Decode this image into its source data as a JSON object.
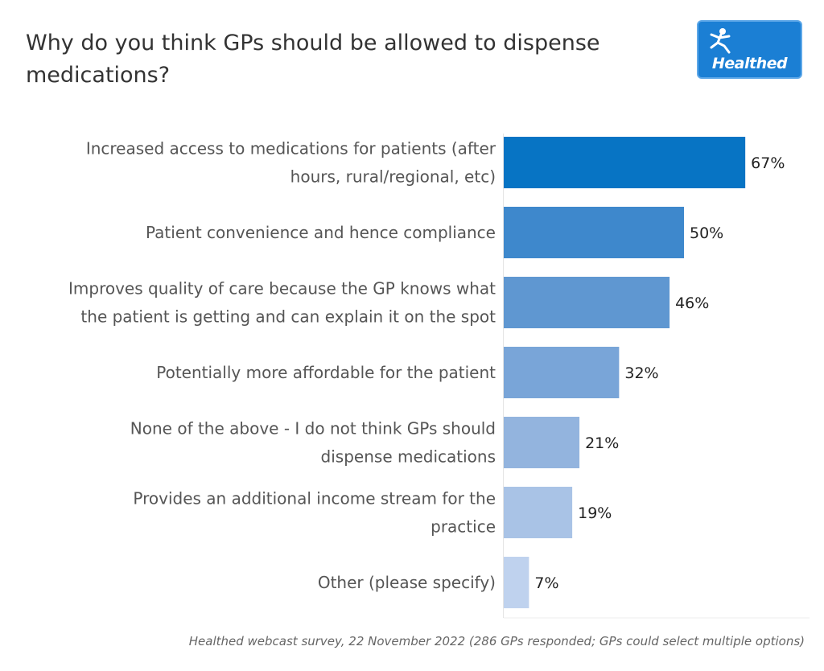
{
  "logo": {
    "text": "Healthed",
    "icon": "hermes-figure-icon",
    "color": "#1b7fd4"
  },
  "footnote": "Healthed webcast survey, 22 November 2022 (286 GPs responded; GPs could select multiple options)",
  "chart_data": {
    "type": "bar",
    "orientation": "horizontal",
    "title": "Why do you think GPs should be allowed to dispense medications?",
    "xlabel": "",
    "ylabel": "",
    "xlim": [
      0,
      100
    ],
    "grid": false,
    "legend": "none",
    "value_suffix": "%",
    "categories": [
      [
        "Increased access to medications for patients (after",
        "hours, rural/regional, etc)"
      ],
      [
        "Patient convenience and hence compliance"
      ],
      [
        "Improves quality of care because the GP knows what",
        "the patient is getting and can explain it on the spot"
      ],
      [
        "Potentially more affordable for the patient"
      ],
      [
        "None of the above - I do not think GPs should",
        "dispense medications"
      ],
      [
        "Provides an additional income stream for the",
        "practice"
      ],
      [
        "Other (please specify)"
      ]
    ],
    "values": [
      67,
      50,
      46,
      32,
      21,
      19,
      7
    ],
    "bar_colors": [
      "#0774c4",
      "#3e88cc",
      "#5f97d1",
      "#79a5d8",
      "#93b4de",
      "#a9c3e6",
      "#bfd2ee"
    ]
  }
}
